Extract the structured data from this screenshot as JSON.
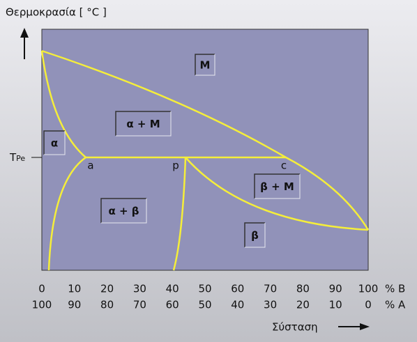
{
  "title": "Θερμοκρασία [ °C ]",
  "axis": {
    "b_ticks": [
      0,
      10,
      20,
      30,
      40,
      50,
      60,
      70,
      80,
      90,
      100
    ],
    "b_label": "% B",
    "a_ticks": [
      100,
      90,
      80,
      70,
      60,
      50,
      40,
      30,
      20,
      10,
      0
    ],
    "a_label": "% A",
    "composition_label": "Σύσταση"
  },
  "temperature_marker": {
    "main": "T",
    "sub": "Pe"
  },
  "points": [
    "a",
    "p",
    "c"
  ],
  "regions": [
    "M",
    "α + M",
    "α",
    "α + β",
    "β + M",
    "β"
  ]
}
